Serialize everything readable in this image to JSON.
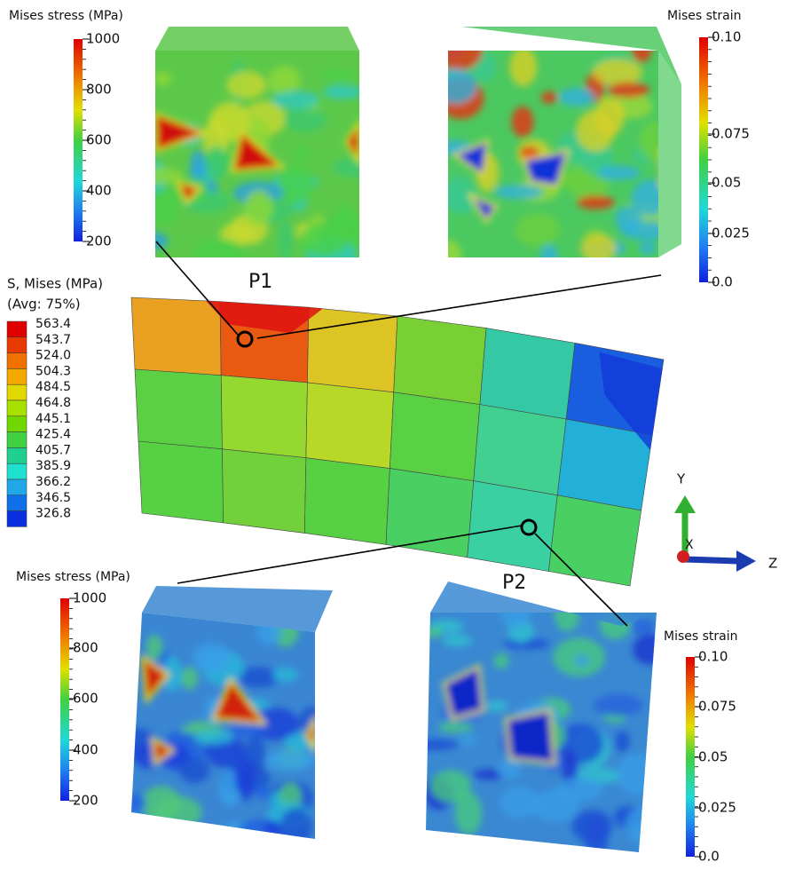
{
  "colorbars": [
    {
      "title": "Mises stress (MPa)",
      "labels": [
        "1000",
        "800",
        "600",
        "400",
        "200"
      ]
    },
    {
      "title": "Mises strain",
      "labels": [
        "0.10",
        "0.075",
        "0.05",
        "0.025",
        "0.0"
      ]
    },
    {
      "title": "Mises stress (MPa)",
      "labels": [
        "1000",
        "800",
        "600",
        "400",
        "200"
      ]
    },
    {
      "title": "Mises strain",
      "labels": [
        "0.10",
        "0.075",
        "0.05",
        "0.025",
        "0.0"
      ]
    }
  ],
  "contour_legend": {
    "title": "S, Mises (MPa)",
    "subtitle": "(Avg: 75%)",
    "levels": [
      "563.4",
      "543.7",
      "524.0",
      "504.3",
      "484.5",
      "464.8",
      "445.1",
      "425.4",
      "405.7",
      "385.9",
      "366.2",
      "346.5",
      "326.8"
    ]
  },
  "points": [
    "P1",
    "P2"
  ],
  "axes": {
    "y": "Y",
    "z": "Z",
    "x": "X"
  }
}
